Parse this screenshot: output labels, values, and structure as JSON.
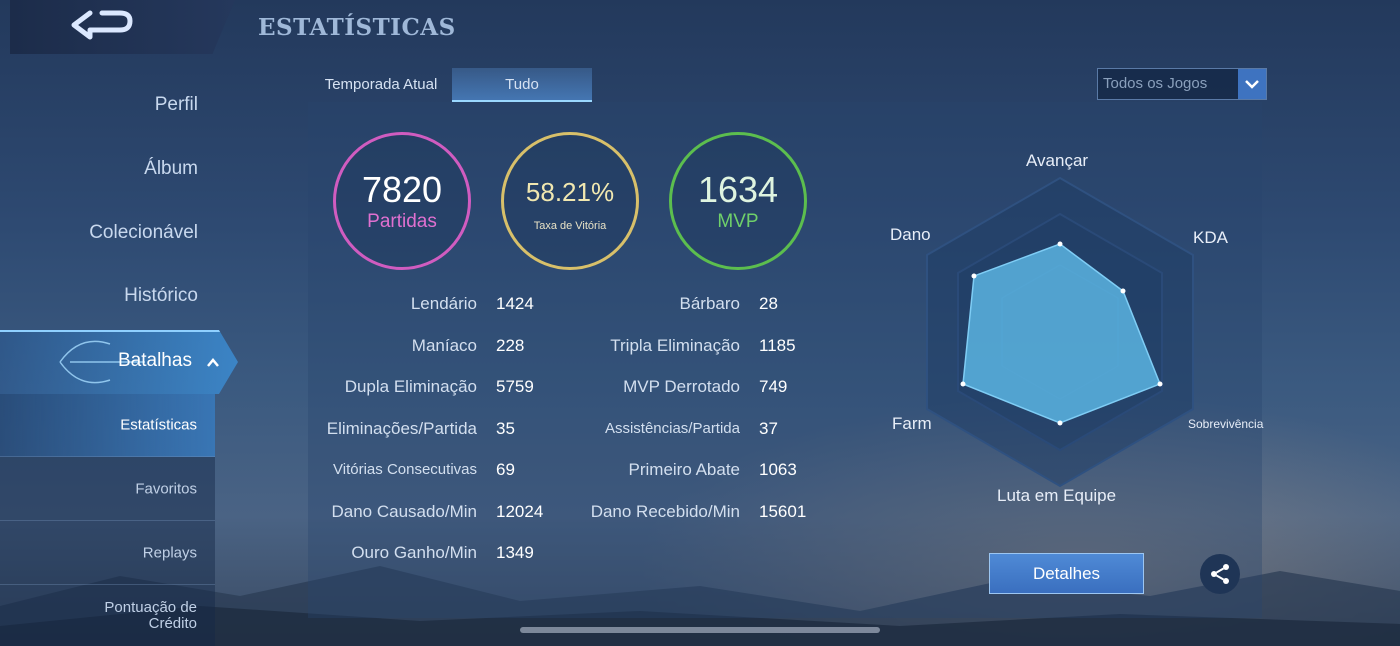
{
  "header": {
    "title": "ESTATÍSTICAS"
  },
  "sidebar": {
    "items": [
      {
        "label": "Perfil"
      },
      {
        "label": "Álbum"
      },
      {
        "label": "Colecionável"
      },
      {
        "label": "Histórico"
      },
      {
        "label": "Batalhas"
      }
    ],
    "sub_items": [
      {
        "label": "Estatísticas"
      },
      {
        "label": "Favoritos"
      },
      {
        "label": "Replays"
      },
      {
        "label": "Pontuação de Crédito"
      }
    ]
  },
  "tabs": [
    {
      "label": "Temporada Atual"
    },
    {
      "label": "Tudo"
    }
  ],
  "filter": {
    "value": "Todos os Jogos"
  },
  "summary": {
    "matches": {
      "value": "7820",
      "label": "Partidas"
    },
    "winrate": {
      "value": "58.21%",
      "label": "Taxa de Vitória"
    },
    "mvp": {
      "value": "1634",
      "label": "MVP"
    }
  },
  "stats_left": [
    {
      "label": "Lendário",
      "value": "1424"
    },
    {
      "label": "Maníaco",
      "value": "228"
    },
    {
      "label": "Dupla Eliminação",
      "value": "5759"
    },
    {
      "label": "Eliminações/Partida",
      "value": "35"
    },
    {
      "label": "Vitórias Consecutivas",
      "value": "69"
    },
    {
      "label": "Dano Causado/Min",
      "value": "12024"
    },
    {
      "label": "Ouro Ganho/Min",
      "value": "1349"
    }
  ],
  "stats_right": [
    {
      "label": "Bárbaro",
      "value": "28"
    },
    {
      "label": "Tripla Eliminação",
      "value": "1185"
    },
    {
      "label": "MVP Derrotado",
      "value": "749"
    },
    {
      "label": "Assistências/Partida",
      "value": "37"
    },
    {
      "label": "Primeiro Abate",
      "value": "1063"
    },
    {
      "label": "Dano Recebido/Min",
      "value": "15601"
    }
  ],
  "radar": {
    "labels": {
      "avancar": "Avançar",
      "kda": "KDA",
      "sobrevivencia": "Sobrevivência",
      "luta": "Luta em Equipe",
      "farm": "Farm",
      "dano": "Dano"
    }
  },
  "details_button": "Detalhes",
  "colors": {
    "matches": "#d05cc0",
    "winrate": "#d8c06a",
    "mvp": "#5cbe4e",
    "radar_fill": "#5ab4e2"
  }
}
